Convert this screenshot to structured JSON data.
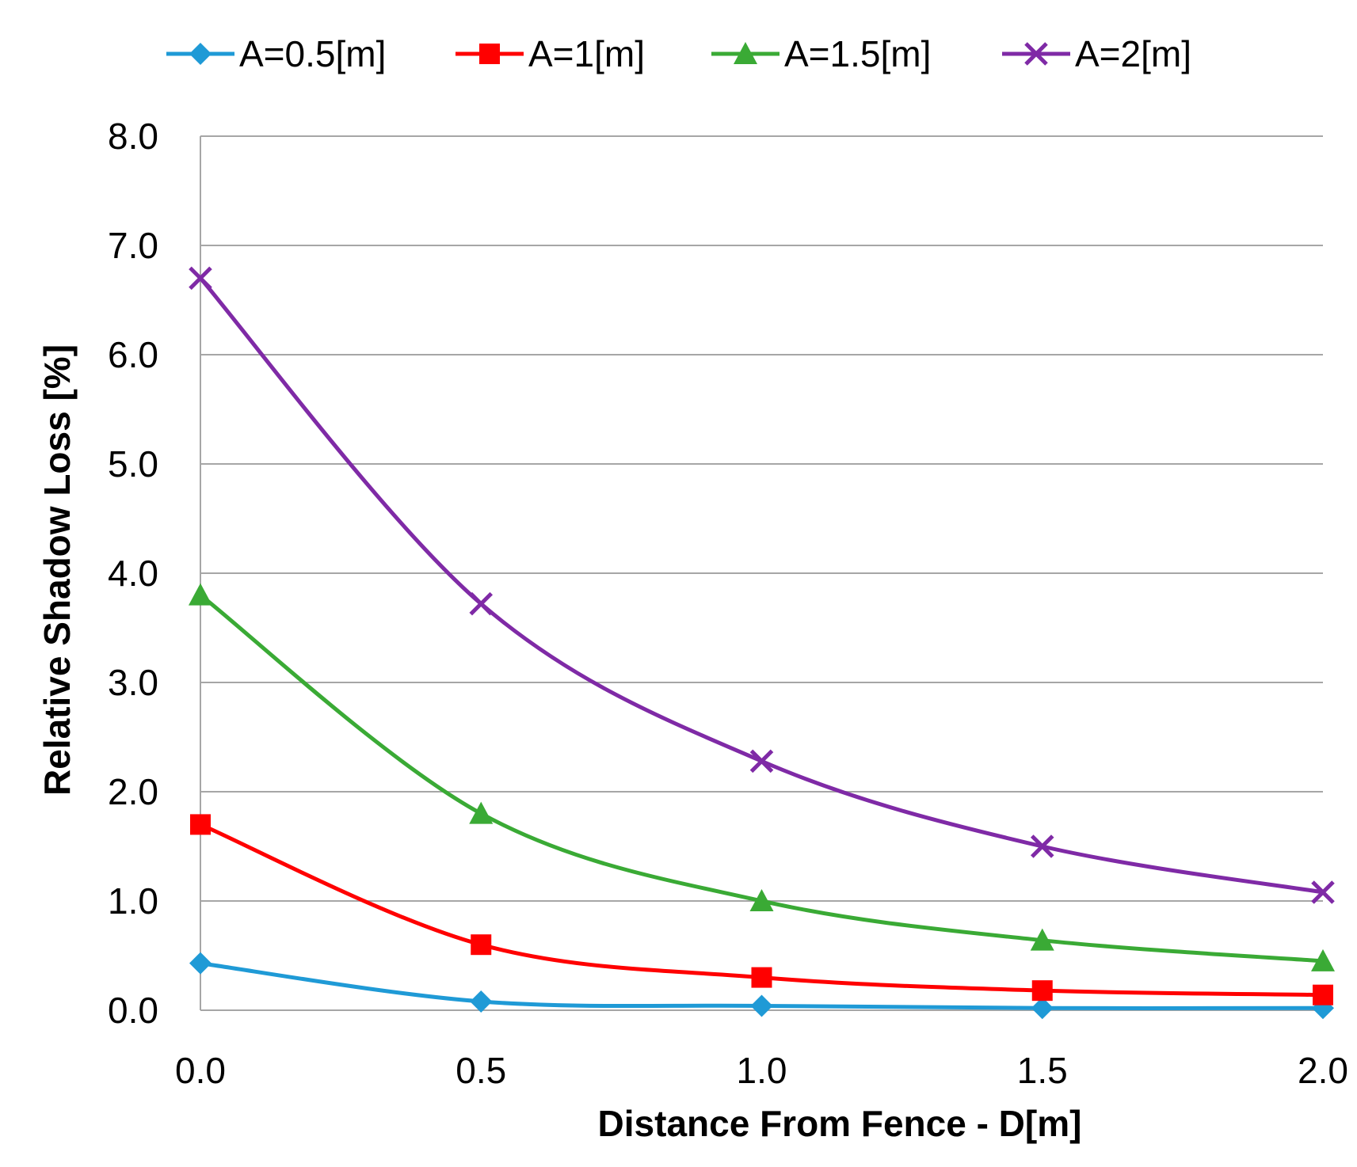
{
  "chart_data": {
    "type": "line",
    "title": "",
    "xlabel": "Distance From Fence - D[m]",
    "ylabel": "Relative Shadow Loss [%]",
    "x": [
      0.0,
      0.5,
      1.0,
      1.5,
      2.0
    ],
    "x_tick_labels": [
      "0.0",
      "0.5",
      "1.0",
      "1.5",
      "2.0"
    ],
    "y_tick_labels": [
      "0.0",
      "1.0",
      "2.0",
      "3.0",
      "4.0",
      "5.0",
      "6.0",
      "7.0",
      "8.0"
    ],
    "xlim": [
      0,
      2
    ],
    "ylim": [
      0,
      8
    ],
    "grid": true,
    "legend_position": "top",
    "series": [
      {
        "name": "A=0.5[m]",
        "color": "#1f9ad6",
        "marker": "diamond",
        "values": [
          0.43,
          0.08,
          0.04,
          0.02,
          0.02
        ]
      },
      {
        "name": "A=1[m]",
        "color": "#ff0000",
        "marker": "square",
        "values": [
          1.7,
          0.6,
          0.3,
          0.18,
          0.14
        ]
      },
      {
        "name": "A=1.5[m]",
        "color": "#3aaa35",
        "marker": "triangle",
        "values": [
          3.8,
          1.8,
          1.0,
          0.64,
          0.45
        ]
      },
      {
        "name": "A=2[m]",
        "color": "#7f2aa6",
        "marker": "x",
        "values": [
          6.7,
          3.72,
          2.28,
          1.5,
          1.08
        ]
      }
    ]
  }
}
